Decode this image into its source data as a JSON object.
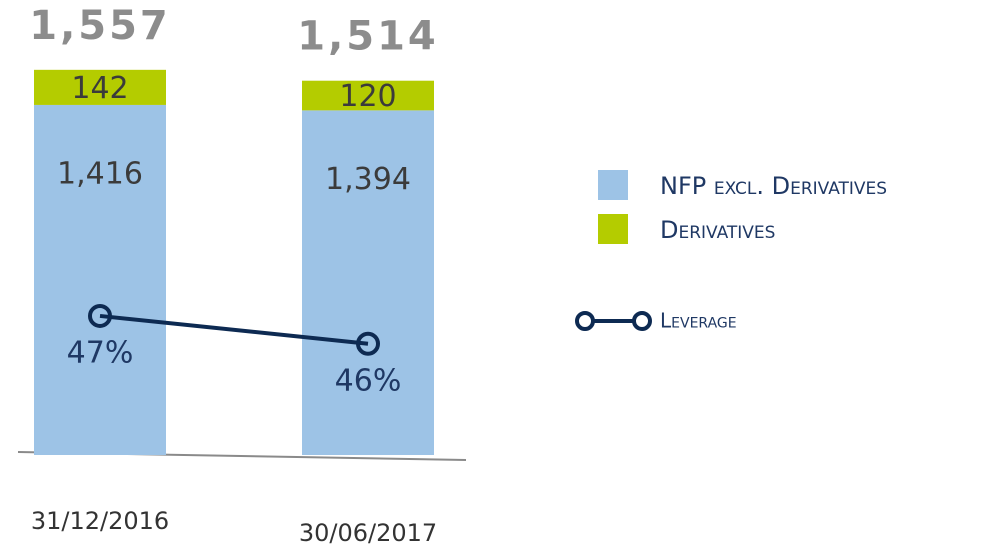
{
  "chart_data": {
    "type": "bar",
    "categories": [
      "31/12/2016",
      "30/06/2017"
    ],
    "series": [
      {
        "name": "NFP excl. Derivatives",
        "color": "#9dc3e6",
        "values": [
          1416,
          1394
        ],
        "value_labels": [
          "1,416",
          "1,394"
        ]
      },
      {
        "name": "Derivatives",
        "color": "#b4cc00",
        "values": [
          142,
          120
        ]
      },
      {
        "name": "Leverage",
        "type": "line",
        "axis": "y2",
        "color": "#0d2a52",
        "values": [
          47,
          46
        ],
        "value_labels": [
          "47%",
          "46%"
        ]
      }
    ],
    "totals": [
      1557,
      1514
    ],
    "total_labels": [
      "1,557",
      "1,514"
    ],
    "stacked": true,
    "ylim": [
      0,
      1800
    ],
    "y2lim": [
      42,
      58
    ],
    "legend": "right"
  }
}
